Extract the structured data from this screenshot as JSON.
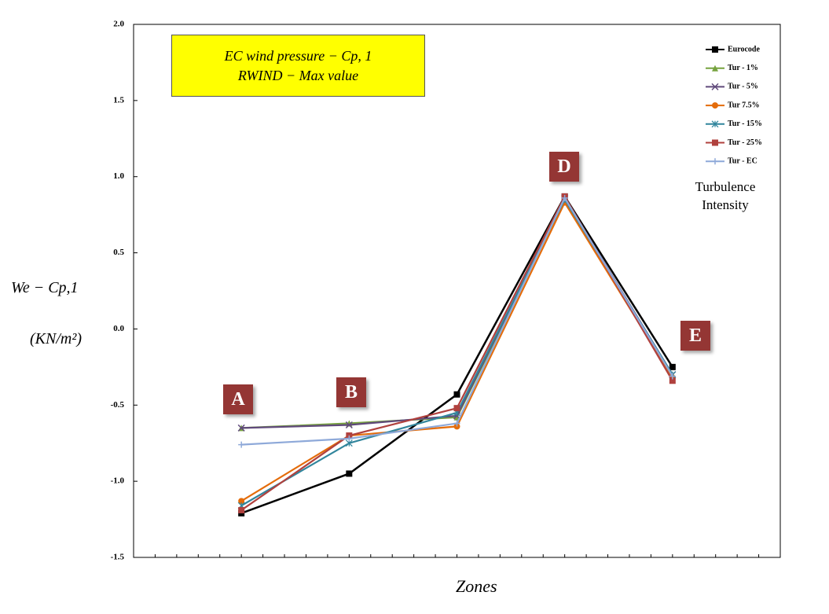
{
  "chart_data": {
    "type": "line",
    "title": "EC wind pressure − Cp, 1",
    "subtitle": "RWIND − Max value",
    "ylabel": "We − Cp,1",
    "yunit": "(KN/m²)",
    "xlabel": "Zones",
    "legend_title": "Turbulence Intensity",
    "legend": "upper right",
    "annotations": [
      "A",
      "B",
      "D",
      "E"
    ],
    "x": [
      1,
      2,
      3,
      4,
      5
    ],
    "xlim": [
      0,
      6
    ],
    "ylim": [
      -1.5,
      2.0
    ],
    "yticks": [
      {
        "value": -1.5,
        "label": "-1.5"
      },
      {
        "value": -1,
        "label": "-1.0"
      },
      -0.5,
      {
        "value": 0,
        "label": "0.0"
      },
      0.5,
      {
        "value": 1,
        "label": "1.0"
      },
      1.5,
      {
        "value": 2,
        "label": "2.0"
      }
    ],
    "grid": false,
    "series": [
      {
        "name": "Eurocode",
        "color": "#000000",
        "marker": "square",
        "values": [
          -1.21,
          -0.95,
          -0.43,
          0.87,
          -0.25
        ]
      },
      {
        "name": "Tur - 1%",
        "color": "#77a33f",
        "marker": "triangle",
        "values": [
          -0.65,
          -0.62,
          -0.58,
          0.85,
          -0.3
        ]
      },
      {
        "name": "Tur - 5%",
        "color": "#604a7b",
        "marker": "x",
        "values": [
          -0.65,
          -0.63,
          -0.57,
          0.86,
          -0.3
        ]
      },
      {
        "name": "Tur 7.5%",
        "color": "#e46c0a",
        "marker": "circle",
        "values": [
          -1.13,
          -0.7,
          -0.64,
          0.83,
          -0.32
        ]
      },
      {
        "name": "Tur - 15%",
        "color": "#31859c",
        "marker": "star",
        "values": [
          -1.16,
          -0.75,
          -0.55,
          0.85,
          -0.3
        ]
      },
      {
        "name": "Tur - 25%",
        "color": "#b0413e",
        "marker": "square",
        "values": [
          -1.19,
          -0.7,
          -0.52,
          0.87,
          -0.34
        ]
      },
      {
        "name": "Tur - EC",
        "color": "#8ea9d9",
        "marker": "plus",
        "values": [
          -0.76,
          -0.72,
          -0.62,
          0.86,
          -0.31
        ]
      }
    ]
  }
}
